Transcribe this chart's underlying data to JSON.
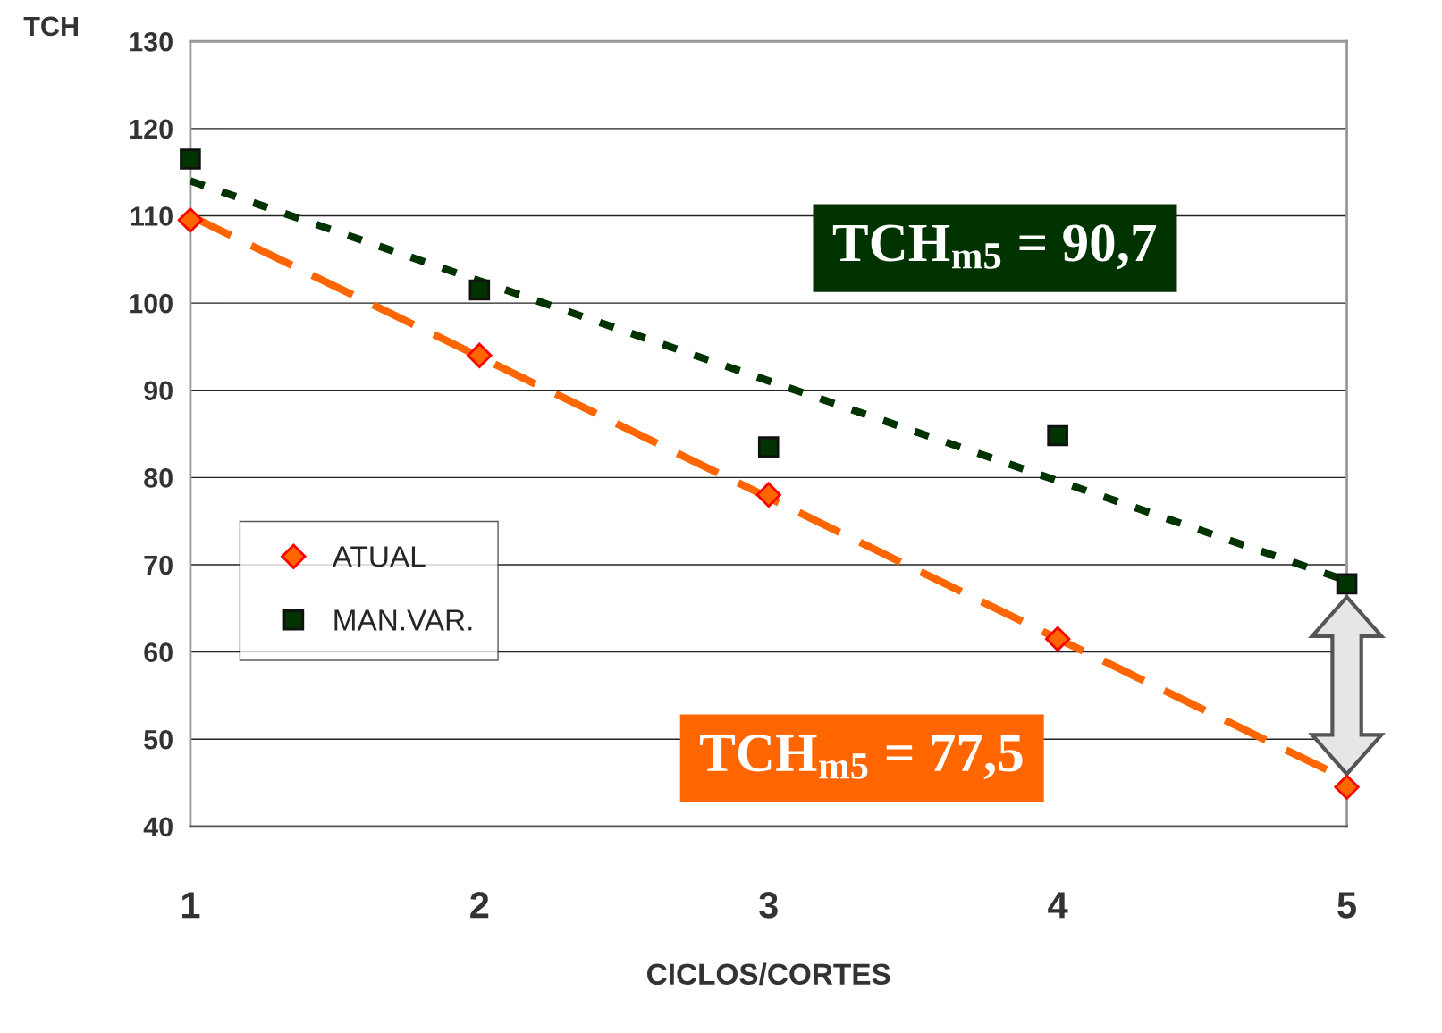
{
  "chart_data": {
    "type": "scatter",
    "xlabel": "CICLOS/CORTES",
    "ylabel": "TCH",
    "x": [
      1,
      2,
      3,
      4,
      5
    ],
    "series": [
      {
        "name": "ATUAL",
        "color": "#ff6600",
        "marker": "diamond",
        "values": [
          109.5,
          94,
          78,
          61.5,
          44.5
        ]
      },
      {
        "name": "MAN.VAR.",
        "color": "#003300",
        "marker": "square",
        "values": [
          116.5,
          101.5,
          83.5,
          84.8,
          67.8
        ]
      },
      {
        "type": "line",
        "color": "#ff6600",
        "line_style": "dashed",
        "x": [
          1,
          4.93
        ],
        "values": [
          110,
          46.5
        ]
      },
      {
        "type": "line",
        "color": "#003300",
        "line_style": "dotted",
        "x": [
          1,
          4.97
        ],
        "values": [
          114,
          68.5
        ]
      }
    ],
    "annotations": [
      "TCH$_{m5}$ = 90,7",
      "TCH$_{m5}$ = 77,5"
    ],
    "xlim": [
      1,
      5
    ],
    "xticks": [
      1,
      2,
      3,
      4,
      5
    ],
    "ylim": [
      40,
      130
    ],
    "yticks": [
      40,
      50,
      60,
      70,
      80,
      90,
      100,
      110,
      120,
      130
    ],
    "grid": "y",
    "legend": "left"
  }
}
